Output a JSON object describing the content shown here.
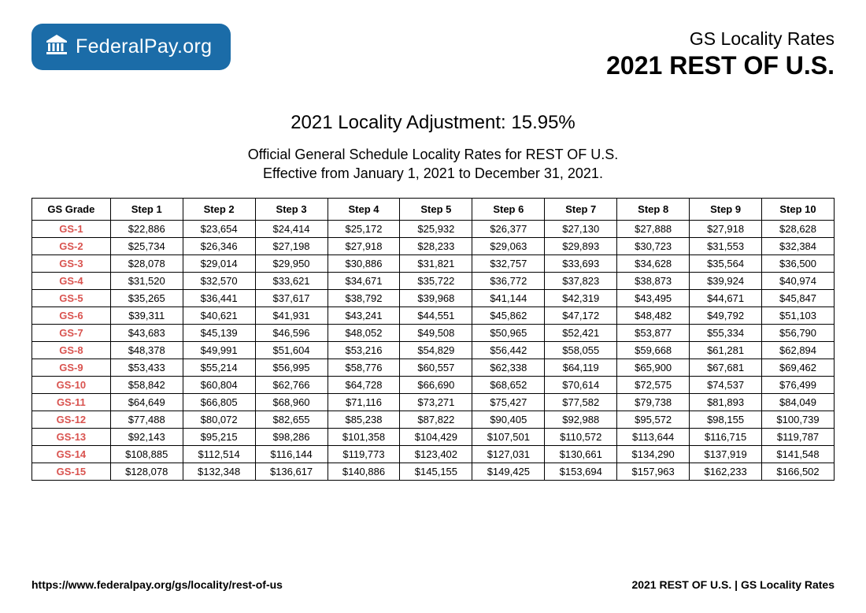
{
  "logo": {
    "text_bold": "Federal",
    "text_thin": "Pay.org",
    "badge_color": "#1b6ca8"
  },
  "header": {
    "line1": "GS Locality Rates",
    "line2": "2021 REST OF U.S."
  },
  "title": {
    "adjustment": "2021 Locality Adjustment: 15.95%",
    "sub1": "Official General Schedule Locality Rates for REST OF U.S.",
    "sub2": "Effective from January 1, 2021 to December 31, 2021."
  },
  "table": {
    "grade_color": "#d9534f",
    "border_color": "#000000",
    "columns": [
      "GS Grade",
      "Step 1",
      "Step 2",
      "Step 3",
      "Step 4",
      "Step 5",
      "Step 6",
      "Step 7",
      "Step 8",
      "Step 9",
      "Step 10"
    ],
    "rows": [
      [
        "GS-1",
        "$22,886",
        "$23,654",
        "$24,414",
        "$25,172",
        "$25,932",
        "$26,377",
        "$27,130",
        "$27,888",
        "$27,918",
        "$28,628"
      ],
      [
        "GS-2",
        "$25,734",
        "$26,346",
        "$27,198",
        "$27,918",
        "$28,233",
        "$29,063",
        "$29,893",
        "$30,723",
        "$31,553",
        "$32,384"
      ],
      [
        "GS-3",
        "$28,078",
        "$29,014",
        "$29,950",
        "$30,886",
        "$31,821",
        "$32,757",
        "$33,693",
        "$34,628",
        "$35,564",
        "$36,500"
      ],
      [
        "GS-4",
        "$31,520",
        "$32,570",
        "$33,621",
        "$34,671",
        "$35,722",
        "$36,772",
        "$37,823",
        "$38,873",
        "$39,924",
        "$40,974"
      ],
      [
        "GS-5",
        "$35,265",
        "$36,441",
        "$37,617",
        "$38,792",
        "$39,968",
        "$41,144",
        "$42,319",
        "$43,495",
        "$44,671",
        "$45,847"
      ],
      [
        "GS-6",
        "$39,311",
        "$40,621",
        "$41,931",
        "$43,241",
        "$44,551",
        "$45,862",
        "$47,172",
        "$48,482",
        "$49,792",
        "$51,103"
      ],
      [
        "GS-7",
        "$43,683",
        "$45,139",
        "$46,596",
        "$48,052",
        "$49,508",
        "$50,965",
        "$52,421",
        "$53,877",
        "$55,334",
        "$56,790"
      ],
      [
        "GS-8",
        "$48,378",
        "$49,991",
        "$51,604",
        "$53,216",
        "$54,829",
        "$56,442",
        "$58,055",
        "$59,668",
        "$61,281",
        "$62,894"
      ],
      [
        "GS-9",
        "$53,433",
        "$55,214",
        "$56,995",
        "$58,776",
        "$60,557",
        "$62,338",
        "$64,119",
        "$65,900",
        "$67,681",
        "$69,462"
      ],
      [
        "GS-10",
        "$58,842",
        "$60,804",
        "$62,766",
        "$64,728",
        "$66,690",
        "$68,652",
        "$70,614",
        "$72,575",
        "$74,537",
        "$76,499"
      ],
      [
        "GS-11",
        "$64,649",
        "$66,805",
        "$68,960",
        "$71,116",
        "$73,271",
        "$75,427",
        "$77,582",
        "$79,738",
        "$81,893",
        "$84,049"
      ],
      [
        "GS-12",
        "$77,488",
        "$80,072",
        "$82,655",
        "$85,238",
        "$87,822",
        "$90,405",
        "$92,988",
        "$95,572",
        "$98,155",
        "$100,739"
      ],
      [
        "GS-13",
        "$92,143",
        "$95,215",
        "$98,286",
        "$101,358",
        "$104,429",
        "$107,501",
        "$110,572",
        "$113,644",
        "$116,715",
        "$119,787"
      ],
      [
        "GS-14",
        "$108,885",
        "$112,514",
        "$116,144",
        "$119,773",
        "$123,402",
        "$127,031",
        "$130,661",
        "$134,290",
        "$137,919",
        "$141,548"
      ],
      [
        "GS-15",
        "$128,078",
        "$132,348",
        "$136,617",
        "$140,886",
        "$145,155",
        "$149,425",
        "$153,694",
        "$157,963",
        "$162,233",
        "$166,502"
      ]
    ]
  },
  "footer": {
    "left": "https://www.federalpay.org/gs/locality/rest-of-us",
    "right": "2021 REST OF U.S. | GS Locality Rates"
  }
}
